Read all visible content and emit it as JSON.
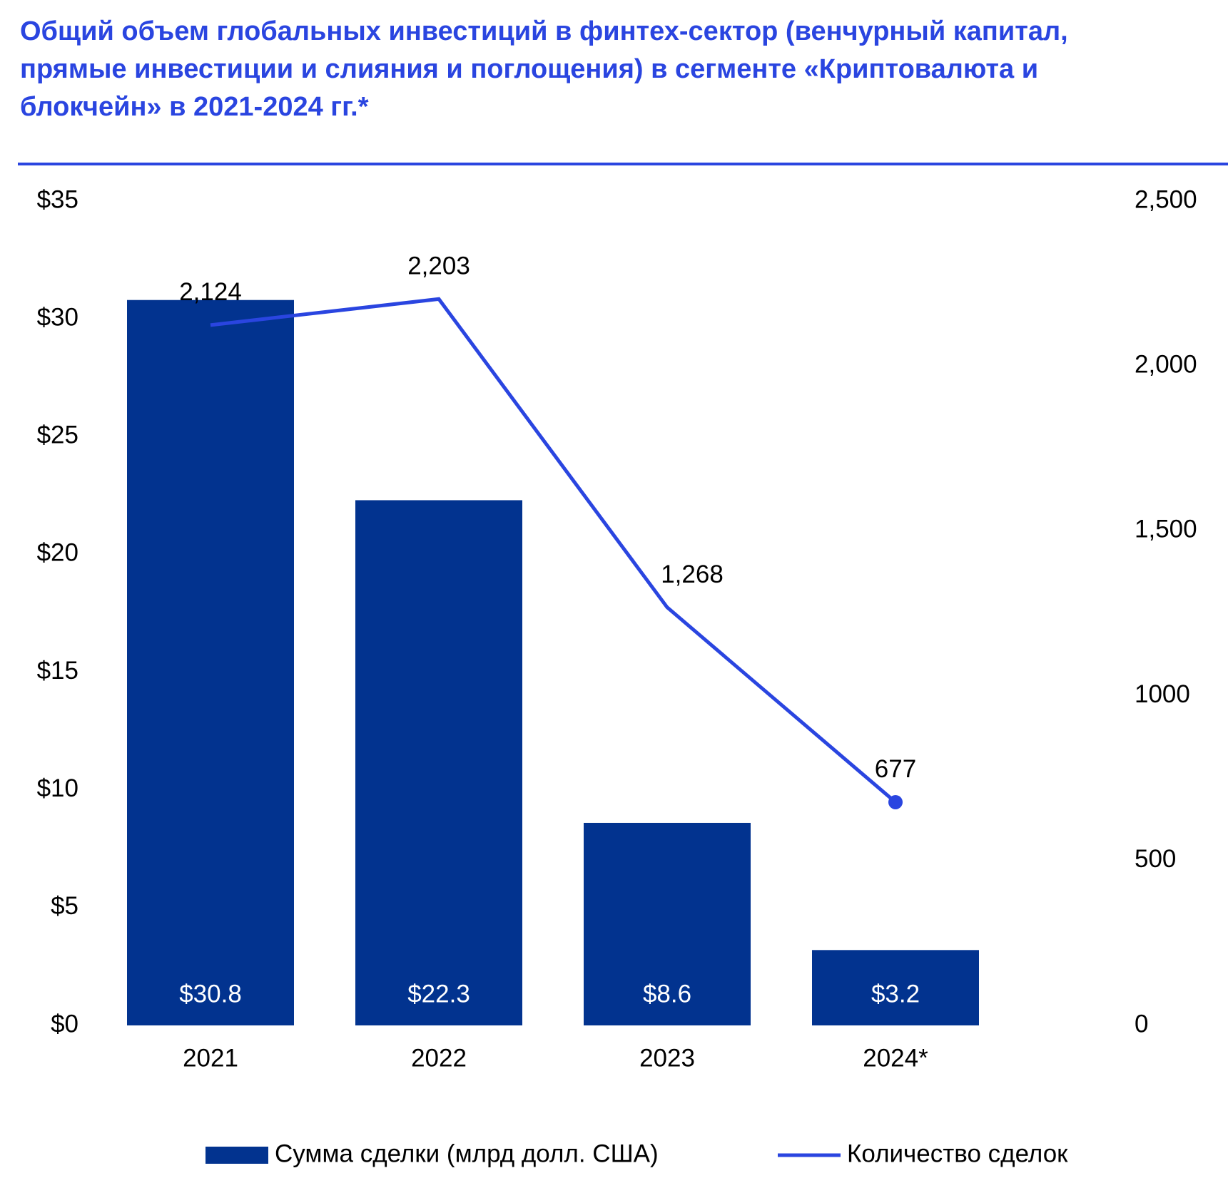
{
  "chart_data": {
    "type": "bar_line",
    "title": "Общий объем глобальных инвестиций в финтех-сектор (венчурный капитал, прямые инвестиции и слияния и поглощения) в сегменте «Криптовалюта и блокчейн» в 2021-2024 гг.*",
    "categories": [
      "2021",
      "2022",
      "2023",
      "2024*"
    ],
    "series": [
      {
        "name": "Сумма сделки (млрд долл. США)",
        "type": "bar",
        "color": "#02338f",
        "values": [
          30.8,
          22.3,
          8.6,
          3.2
        ],
        "value_labels": [
          "$30.8",
          "$22.3",
          "$8.6",
          "$3.2"
        ]
      },
      {
        "name": "Количество сделок",
        "type": "line",
        "axis": "y2",
        "color": "#2a45e0",
        "values": [
          2124,
          2203,
          1268,
          677
        ],
        "value_labels": [
          "2,124",
          "2,203",
          "1,268",
          "677"
        ]
      }
    ],
    "ylim": [
      0,
      35
    ],
    "yticks": [
      {
        "value": 0,
        "label": "$0"
      },
      {
        "value": 5,
        "label": "$5"
      },
      {
        "value": 10,
        "label": "$10"
      },
      {
        "value": 15,
        "label": "$15"
      },
      {
        "value": 20,
        "label": "$20"
      },
      {
        "value": 25,
        "label": "$25"
      },
      {
        "value": 30,
        "label": "$30"
      },
      {
        "value": 35,
        "label": "$35"
      }
    ],
    "y2lim": [
      0,
      2500
    ],
    "y2ticks": [
      0,
      500,
      1000,
      {
        "value": 1500,
        "label": "1,500"
      },
      {
        "value": 2000,
        "label": "2,000"
      },
      {
        "value": 2500,
        "label": "2,500"
      }
    ],
    "grid": false,
    "legend": "bottom"
  }
}
